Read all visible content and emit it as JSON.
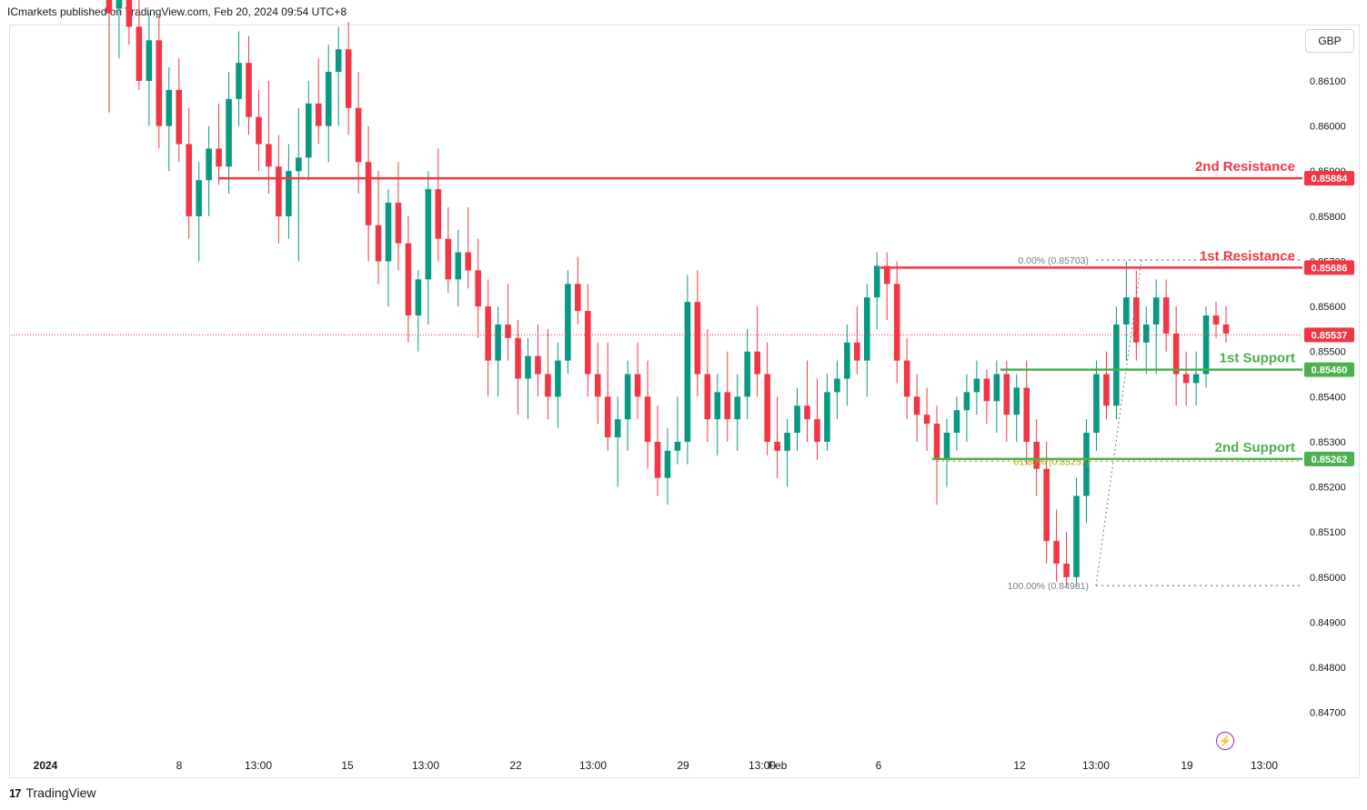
{
  "header": {
    "published": "ICmarkets published on TradingView.com, Feb 20, 2024 09:54 UTC+8"
  },
  "currency": "GBP",
  "footer": {
    "brand": "TradingView",
    "logo": "17"
  },
  "colors": {
    "bull": "#089981",
    "bear": "#f23645",
    "resistance": "#f23645",
    "support": "#4caf50",
    "fib": "#b7a100"
  },
  "chart_data": {
    "type": "candlestick",
    "ylim": [
      0.8462,
      0.8626
    ],
    "y_ticks": [
      "0.86100",
      "0.86000",
      "0.85900",
      "0.85800",
      "0.85700",
      "0.85600",
      "0.85500",
      "0.85400",
      "0.85300",
      "0.85200",
      "0.85100",
      "0.85000",
      "0.84900",
      "0.84800",
      "0.84700"
    ],
    "x_ticks": [
      "2024",
      "8",
      "13:00",
      "15",
      "13:00",
      "22",
      "13:00",
      "29",
      "13:00",
      "Feb",
      "6",
      "12",
      "13:00",
      "19",
      "13:00"
    ],
    "current_price": "0.85537",
    "levels": [
      {
        "label": "2nd Resistance",
        "value": "0.85884",
        "kind": "resistance"
      },
      {
        "label": "1st Resistance",
        "value": "0.85686",
        "kind": "resistance"
      },
      {
        "label": "1st Support",
        "value": "0.85460",
        "kind": "support"
      },
      {
        "label": "2nd Support",
        "value": "0.85262",
        "kind": "support"
      }
    ],
    "fibonacci": [
      {
        "label": "0.00% (0.85703)",
        "value": 0.85703
      },
      {
        "label": "61.80% (0.85257)",
        "value": 0.85257
      },
      {
        "label": "100.00% (0.84981)",
        "value": 0.84981
      }
    ],
    "candles": [
      [
        0.863,
        0.8635,
        0.8603,
        0.8625
      ],
      [
        0.8626,
        0.8633,
        0.8615,
        0.8628
      ],
      [
        0.8628,
        0.8637,
        0.8618,
        0.8622
      ],
      [
        0.8622,
        0.8628,
        0.8608,
        0.861
      ],
      [
        0.861,
        0.8625,
        0.86,
        0.8619
      ],
      [
        0.8619,
        0.8624,
        0.8595,
        0.86
      ],
      [
        0.86,
        0.8613,
        0.859,
        0.8608
      ],
      [
        0.8608,
        0.8615,
        0.8592,
        0.8596
      ],
      [
        0.8596,
        0.8604,
        0.8575,
        0.858
      ],
      [
        0.858,
        0.8592,
        0.857,
        0.8588
      ],
      [
        0.8588,
        0.86,
        0.858,
        0.8595
      ],
      [
        0.8595,
        0.8605,
        0.8587,
        0.8591
      ],
      [
        0.8591,
        0.8612,
        0.8585,
        0.8606
      ],
      [
        0.8606,
        0.8621,
        0.86,
        0.8614
      ],
      [
        0.8614,
        0.862,
        0.8598,
        0.8602
      ],
      [
        0.8602,
        0.8608,
        0.859,
        0.8596
      ],
      [
        0.8596,
        0.861,
        0.8585,
        0.8591
      ],
      [
        0.8591,
        0.8598,
        0.8574,
        0.858
      ],
      [
        0.858,
        0.8596,
        0.8575,
        0.859
      ],
      [
        0.859,
        0.8604,
        0.857,
        0.8593
      ],
      [
        0.8593,
        0.861,
        0.8588,
        0.8605
      ],
      [
        0.8605,
        0.8615,
        0.8596,
        0.86
      ],
      [
        0.86,
        0.8618,
        0.8592,
        0.8612
      ],
      [
        0.8612,
        0.8622,
        0.86,
        0.8617
      ],
      [
        0.8617,
        0.8623,
        0.8598,
        0.8604
      ],
      [
        0.8604,
        0.8612,
        0.8585,
        0.8592
      ],
      [
        0.8592,
        0.86,
        0.857,
        0.8578
      ],
      [
        0.8578,
        0.859,
        0.8565,
        0.857
      ],
      [
        0.857,
        0.8586,
        0.856,
        0.8583
      ],
      [
        0.8583,
        0.8592,
        0.8568,
        0.8574
      ],
      [
        0.8574,
        0.858,
        0.8552,
        0.8558
      ],
      [
        0.8558,
        0.8568,
        0.855,
        0.8566
      ],
      [
        0.8566,
        0.859,
        0.8556,
        0.8586
      ],
      [
        0.8586,
        0.8595,
        0.857,
        0.8575
      ],
      [
        0.8575,
        0.8582,
        0.8563,
        0.8566
      ],
      [
        0.8566,
        0.8577,
        0.856,
        0.8572
      ],
      [
        0.8572,
        0.8582,
        0.8564,
        0.8568
      ],
      [
        0.8568,
        0.8575,
        0.8553,
        0.856
      ],
      [
        0.856,
        0.8566,
        0.854,
        0.8548
      ],
      [
        0.8548,
        0.856,
        0.854,
        0.8556
      ],
      [
        0.8556,
        0.8565,
        0.8548,
        0.8553
      ],
      [
        0.8553,
        0.8557,
        0.8536,
        0.8544
      ],
      [
        0.8544,
        0.8553,
        0.8535,
        0.8549
      ],
      [
        0.8549,
        0.8556,
        0.854,
        0.8545
      ],
      [
        0.8545,
        0.8555,
        0.8535,
        0.854
      ],
      [
        0.854,
        0.8552,
        0.8533,
        0.8548
      ],
      [
        0.8548,
        0.8568,
        0.8545,
        0.8565
      ],
      [
        0.8565,
        0.8571,
        0.8556,
        0.8559
      ],
      [
        0.8559,
        0.8565,
        0.854,
        0.8545
      ],
      [
        0.8545,
        0.8552,
        0.8534,
        0.854
      ],
      [
        0.854,
        0.8552,
        0.8528,
        0.8531
      ],
      [
        0.8531,
        0.854,
        0.852,
        0.8535
      ],
      [
        0.8535,
        0.8548,
        0.8528,
        0.8545
      ],
      [
        0.8545,
        0.8552,
        0.8535,
        0.854
      ],
      [
        0.854,
        0.8548,
        0.8524,
        0.853
      ],
      [
        0.853,
        0.8538,
        0.8518,
        0.8522
      ],
      [
        0.8522,
        0.8533,
        0.8516,
        0.8528
      ],
      [
        0.8528,
        0.854,
        0.8525,
        0.853
      ],
      [
        0.853,
        0.8567,
        0.8525,
        0.8561
      ],
      [
        0.8561,
        0.8568,
        0.854,
        0.8545
      ],
      [
        0.8545,
        0.8555,
        0.853,
        0.8535
      ],
      [
        0.8535,
        0.8545,
        0.8527,
        0.8541
      ],
      [
        0.8541,
        0.855,
        0.853,
        0.8535
      ],
      [
        0.8535,
        0.8545,
        0.8528,
        0.854
      ],
      [
        0.854,
        0.8555,
        0.8535,
        0.855
      ],
      [
        0.855,
        0.856,
        0.854,
        0.8545
      ],
      [
        0.8545,
        0.8552,
        0.8527,
        0.853
      ],
      [
        0.853,
        0.854,
        0.8522,
        0.8528
      ],
      [
        0.8528,
        0.8535,
        0.852,
        0.8532
      ],
      [
        0.8532,
        0.8542,
        0.8528,
        0.8538
      ],
      [
        0.8538,
        0.8548,
        0.853,
        0.8535
      ],
      [
        0.8535,
        0.8544,
        0.8526,
        0.853
      ],
      [
        0.853,
        0.8545,
        0.8528,
        0.8541
      ],
      [
        0.8541,
        0.8548,
        0.8535,
        0.8544
      ],
      [
        0.8544,
        0.8556,
        0.8538,
        0.8552
      ],
      [
        0.8552,
        0.856,
        0.8545,
        0.8548
      ],
      [
        0.8548,
        0.8565,
        0.854,
        0.8562
      ],
      [
        0.8562,
        0.8572,
        0.8555,
        0.8569
      ],
      [
        0.8569,
        0.8572,
        0.8557,
        0.8565
      ],
      [
        0.8565,
        0.857,
        0.8543,
        0.8548
      ],
      [
        0.8548,
        0.8553,
        0.8535,
        0.854
      ],
      [
        0.854,
        0.8545,
        0.853,
        0.8536
      ],
      [
        0.8536,
        0.8542,
        0.8528,
        0.8534
      ],
      [
        0.8534,
        0.8538,
        0.8516,
        0.8526
      ],
      [
        0.8526,
        0.8535,
        0.852,
        0.8532
      ],
      [
        0.8532,
        0.854,
        0.8528,
        0.8537
      ],
      [
        0.8537,
        0.8545,
        0.853,
        0.8541
      ],
      [
        0.8541,
        0.8548,
        0.8536,
        0.8544
      ],
      [
        0.8544,
        0.8546,
        0.8534,
        0.8539
      ],
      [
        0.8539,
        0.8548,
        0.8532,
        0.8545
      ],
      [
        0.8545,
        0.8548,
        0.853,
        0.8536
      ],
      [
        0.8536,
        0.8545,
        0.853,
        0.8542
      ],
      [
        0.8542,
        0.8548,
        0.8525,
        0.853
      ],
      [
        0.853,
        0.8535,
        0.8518,
        0.8524
      ],
      [
        0.8524,
        0.853,
        0.8503,
        0.8508
      ],
      [
        0.8508,
        0.8515,
        0.8499,
        0.8503
      ],
      [
        0.8503,
        0.851,
        0.8498,
        0.85
      ],
      [
        0.85,
        0.8522,
        0.8498,
        0.8518
      ],
      [
        0.8518,
        0.8535,
        0.8512,
        0.8532
      ],
      [
        0.8532,
        0.8548,
        0.8528,
        0.8545
      ],
      [
        0.8545,
        0.855,
        0.8535,
        0.8538
      ],
      [
        0.8538,
        0.856,
        0.8535,
        0.8556
      ],
      [
        0.8556,
        0.857,
        0.8548,
        0.8562
      ],
      [
        0.8562,
        0.8568,
        0.8548,
        0.8552
      ],
      [
        0.8552,
        0.856,
        0.8545,
        0.8556
      ],
      [
        0.8556,
        0.8566,
        0.8545,
        0.8562
      ],
      [
        0.8562,
        0.8566,
        0.855,
        0.8554
      ],
      [
        0.8554,
        0.856,
        0.8538,
        0.8545
      ],
      [
        0.8545,
        0.855,
        0.8538,
        0.8543
      ],
      [
        0.8543,
        0.855,
        0.8538,
        0.8545
      ],
      [
        0.8545,
        0.856,
        0.8542,
        0.8558
      ],
      [
        0.8558,
        0.8561,
        0.8553,
        0.8556
      ],
      [
        0.8556,
        0.856,
        0.8552,
        0.8554
      ]
    ]
  }
}
